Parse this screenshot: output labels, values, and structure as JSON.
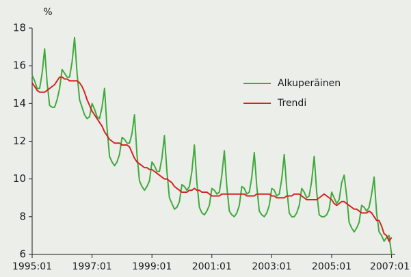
{
  "chart_data": {
    "type": "line",
    "y_label": "%",
    "categories": [
      "1995:01",
      null,
      null,
      null,
      null,
      null,
      null,
      null,
      null,
      null,
      null,
      null,
      null,
      null,
      null,
      null,
      null,
      null,
      null,
      null,
      null,
      null,
      null,
      null,
      "1997:01",
      null,
      null,
      null,
      null,
      null,
      null,
      null,
      null,
      null,
      null,
      null,
      null,
      null,
      null,
      null,
      null,
      null,
      null,
      null,
      null,
      null,
      null,
      null,
      "1999:01",
      null,
      null,
      null,
      null,
      null,
      null,
      null,
      null,
      null,
      null,
      null,
      null,
      null,
      null,
      null,
      null,
      null,
      null,
      null,
      null,
      null,
      null,
      null,
      "2001:01",
      null,
      null,
      null,
      null,
      null,
      null,
      null,
      null,
      null,
      null,
      null,
      null,
      null,
      null,
      null,
      null,
      null,
      null,
      null,
      null,
      null,
      null,
      null,
      "2003:01",
      null,
      null,
      null,
      null,
      null,
      null,
      null,
      null,
      null,
      null,
      null,
      null,
      null,
      null,
      null,
      null,
      null,
      null,
      null,
      null,
      null,
      null,
      null,
      "2005:01",
      null,
      null,
      null,
      null,
      null,
      null,
      null,
      null,
      null,
      null,
      null,
      null,
      null,
      null,
      null,
      null,
      null,
      null,
      null,
      null,
      null,
      null,
      null,
      "2007:01"
    ],
    "series": [
      {
        "name": "Alkuperäinen",
        "color": "#3faa3c",
        "values": [
          15.5,
          15.2,
          14.8,
          14.8,
          15.6,
          16.9,
          15.1,
          13.9,
          13.8,
          13.8,
          14.2,
          14.8,
          15.8,
          15.6,
          15.4,
          15.4,
          16.2,
          17.5,
          15.6,
          14.2,
          13.8,
          13.4,
          13.2,
          13.3,
          14.0,
          13.7,
          13.3,
          13.2,
          13.8,
          14.8,
          12.7,
          11.2,
          10.9,
          10.7,
          10.9,
          11.3,
          12.2,
          12.1,
          11.9,
          11.9,
          12.4,
          13.4,
          11.3,
          9.9,
          9.6,
          9.4,
          9.6,
          9.9,
          10.9,
          10.7,
          10.4,
          10.4,
          11.1,
          12.3,
          10.4,
          9.0,
          8.7,
          8.4,
          8.5,
          8.8,
          9.7,
          9.6,
          9.4,
          9.6,
          10.4,
          11.8,
          9.8,
          8.5,
          8.2,
          8.1,
          8.3,
          8.6,
          9.5,
          9.4,
          9.2,
          9.3,
          10.2,
          11.5,
          9.6,
          8.3,
          8.1,
          8.0,
          8.2,
          8.6,
          9.6,
          9.5,
          9.2,
          9.3,
          10.1,
          11.4,
          9.6,
          8.3,
          8.1,
          8.0,
          8.2,
          8.6,
          9.5,
          9.4,
          9.1,
          9.2,
          10.0,
          11.3,
          9.5,
          8.2,
          8.0,
          8.0,
          8.2,
          8.6,
          9.5,
          9.3,
          9.0,
          9.1,
          9.9,
          11.2,
          9.3,
          8.1,
          8.0,
          8.0,
          8.1,
          8.4,
          9.3,
          9.0,
          8.7,
          8.9,
          9.8,
          10.2,
          9.1,
          7.7,
          7.4,
          7.2,
          7.4,
          7.7,
          8.6,
          8.5,
          8.3,
          8.5,
          9.2,
          10.1,
          8.2,
          7.2,
          7.0,
          6.7,
          6.9,
          7.0,
          6.0
        ]
      },
      {
        "name": "Trendi",
        "color": "#d42222",
        "values": [
          15.1,
          14.9,
          14.7,
          14.6,
          14.6,
          14.6,
          14.7,
          14.8,
          14.9,
          15.0,
          15.2,
          15.4,
          15.4,
          15.3,
          15.3,
          15.2,
          15.2,
          15.2,
          15.2,
          15.1,
          14.9,
          14.6,
          14.2,
          13.9,
          13.6,
          13.4,
          13.2,
          13.0,
          12.8,
          12.5,
          12.3,
          12.1,
          12.0,
          11.9,
          11.9,
          11.9,
          11.8,
          11.8,
          11.8,
          11.7,
          11.4,
          11.1,
          10.9,
          10.8,
          10.7,
          10.6,
          10.6,
          10.5,
          10.5,
          10.4,
          10.3,
          10.2,
          10.1,
          10.0,
          10.0,
          9.9,
          9.8,
          9.6,
          9.5,
          9.4,
          9.3,
          9.3,
          9.3,
          9.4,
          9.4,
          9.5,
          9.4,
          9.4,
          9.3,
          9.3,
          9.3,
          9.2,
          9.1,
          9.1,
          9.1,
          9.1,
          9.2,
          9.2,
          9.2,
          9.2,
          9.2,
          9.2,
          9.2,
          9.2,
          9.2,
          9.2,
          9.1,
          9.1,
          9.1,
          9.1,
          9.2,
          9.2,
          9.2,
          9.2,
          9.2,
          9.2,
          9.1,
          9.1,
          9.0,
          9.0,
          9.0,
          9.0,
          9.1,
          9.1,
          9.1,
          9.2,
          9.2,
          9.2,
          9.1,
          9.0,
          8.9,
          8.9,
          8.9,
          8.9,
          8.9,
          9.0,
          9.1,
          9.2,
          9.1,
          9.0,
          8.9,
          8.7,
          8.6,
          8.7,
          8.8,
          8.8,
          8.7,
          8.6,
          8.5,
          8.4,
          8.4,
          8.3,
          8.2,
          8.2,
          8.2,
          8.3,
          8.2,
          8.0,
          7.8,
          7.8,
          7.5,
          7.1,
          7.0,
          6.7,
          6.9
        ]
      }
    ],
    "ylim": [
      6,
      18
    ],
    "yticks": [
      6,
      8,
      10,
      12,
      14,
      16,
      18
    ],
    "grid": false,
    "legend": "right"
  }
}
